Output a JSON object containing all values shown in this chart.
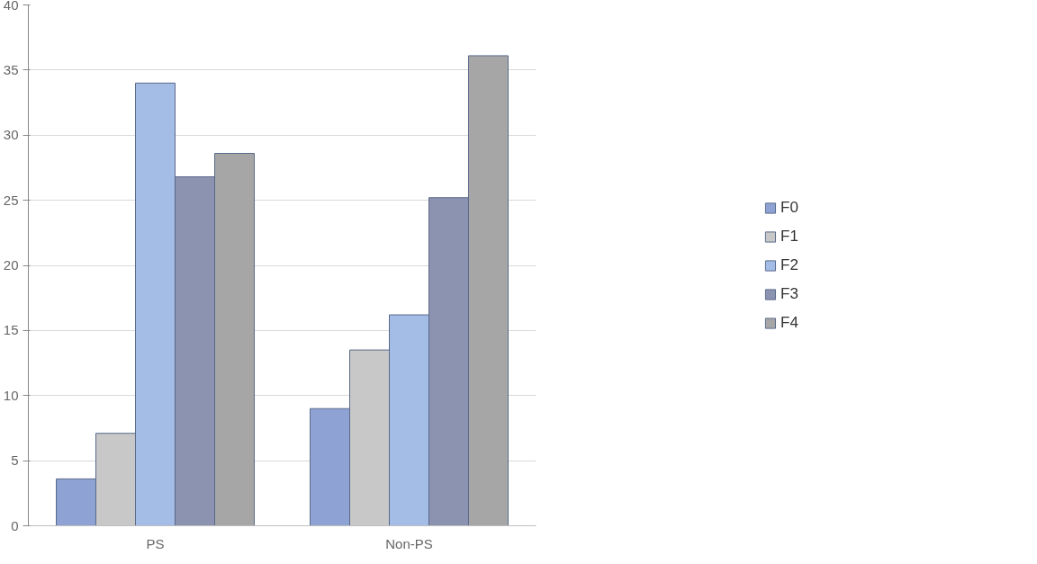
{
  "chart_data": {
    "type": "bar",
    "categories": [
      "PS",
      "Non-PS"
    ],
    "series": [
      {
        "name": "F0",
        "color": "#8fa2d4",
        "values": [
          3.6,
          9.0
        ]
      },
      {
        "name": "F1",
        "color": "#c8c8c8",
        "values": [
          7.1,
          13.5
        ]
      },
      {
        "name": "F2",
        "color": "#a4bde6",
        "values": [
          34.0,
          16.2
        ]
      },
      {
        "name": "F3",
        "color": "#8c93b0",
        "values": [
          26.8,
          25.2
        ]
      },
      {
        "name": "F4",
        "color": "#a6a6a6",
        "values": [
          28.6,
          36.1
        ]
      }
    ],
    "ylim": [
      0,
      40
    ],
    "yticks": [
      0,
      5,
      10,
      15,
      20,
      25,
      30,
      35,
      40
    ],
    "grid": "y",
    "legend": "right"
  }
}
